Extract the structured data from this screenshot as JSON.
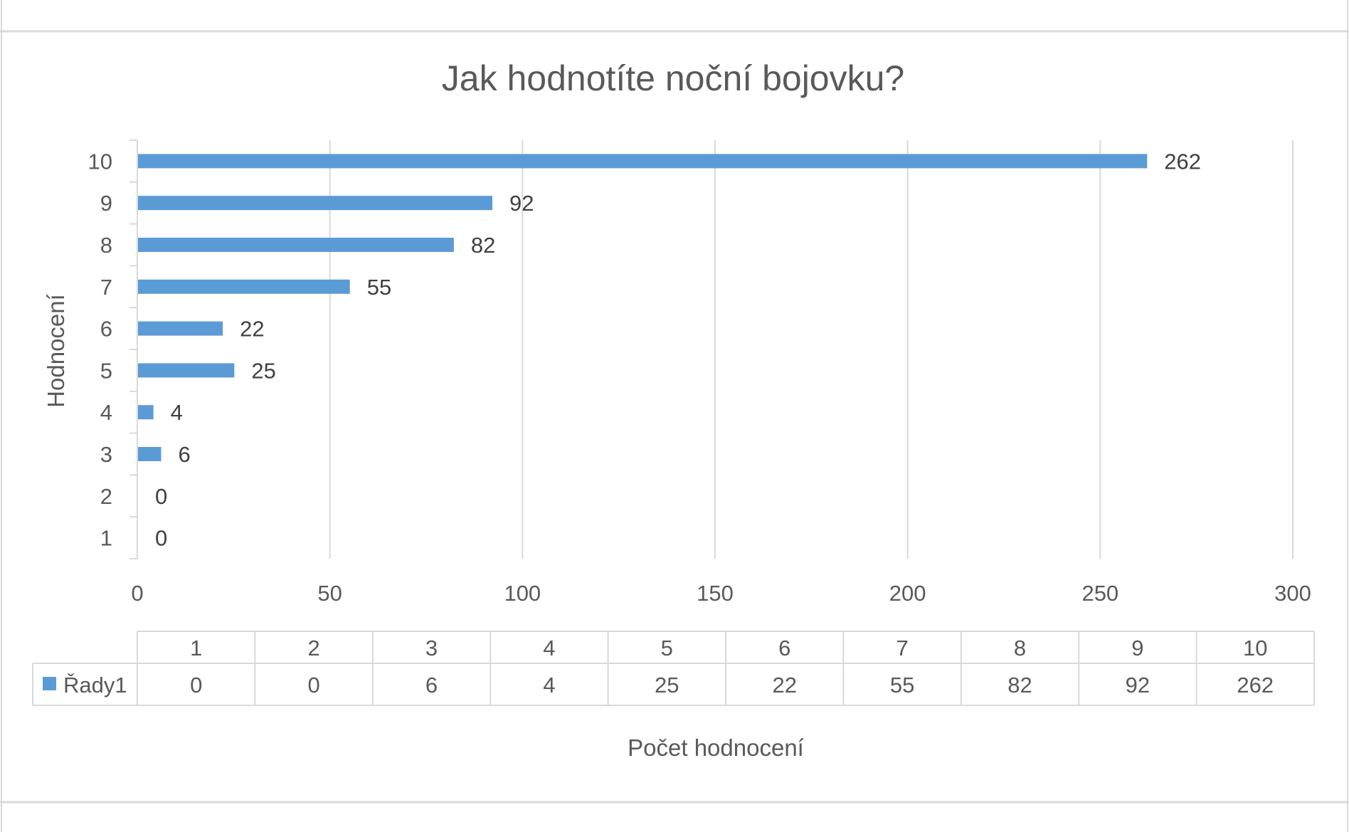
{
  "chart_data": {
    "type": "bar",
    "orientation": "horizontal",
    "title": "Jak hodnotíte noční bojovku?",
    "xlabel": "Počet hodnocení",
    "ylabel": "Hodnocení",
    "categories": [
      "1",
      "2",
      "3",
      "4",
      "5",
      "6",
      "7",
      "8",
      "9",
      "10"
    ],
    "series": [
      {
        "name": "Řady1",
        "values": [
          0,
          0,
          6,
          4,
          25,
          22,
          55,
          82,
          92,
          262
        ]
      }
    ],
    "xlim": [
      0,
      300
    ],
    "xticks": [
      "0",
      "50",
      "100",
      "150",
      "200",
      "250",
      "300"
    ],
    "grid": true,
    "data_labels": true,
    "data_table": true,
    "colors": {
      "bar": "#5B9BD5",
      "grid": "#D9D9D9",
      "text": "#595959",
      "title": "#595959",
      "frame": "#D9D9D9"
    }
  }
}
